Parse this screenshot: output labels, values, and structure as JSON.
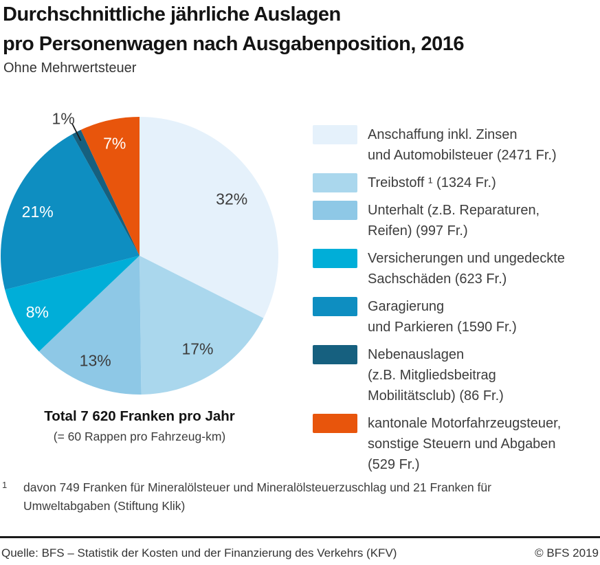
{
  "header": {
    "title_line1": "Durchschnittliche jährliche Auslagen",
    "title_line2": "pro Personenwagen nach Ausgabenposition, 2016",
    "subtitle": "Ohne Mehrwertsteuer"
  },
  "chart_data": {
    "type": "pie",
    "title": "Durchschnittliche jährliche Auslagen pro Personenwagen nach Ausgabenposition, 2016",
    "subtitle": "Ohne Mehrwertsteuer",
    "unit": "Franken (Fr.)",
    "total_value_fr": 7620,
    "total_label": "Total 7 620 Franken pro Jahr",
    "total_sublabel": "(= 60 Rappen pro Fahrzeug-km)",
    "legend_position": "right",
    "labels": "percent, inside slices (1% outside with leader line)",
    "start_angle": "12 o'clock, clockwise",
    "slices": [
      {
        "label": "Anschaffung inkl. Zinsen und Automobilsteuer",
        "value_fr": 2471,
        "pct_label": "32%",
        "color": "#e5f1fb",
        "label_color": "#3c3c3c",
        "label_outside": false
      },
      {
        "label": "Treibstoff ¹",
        "value_fr": 1324,
        "pct_label": "17%",
        "color": "#aad7ed",
        "label_color": "#3c3c3c",
        "label_outside": false
      },
      {
        "label": "Unterhalt (z.B. Reparaturen, Reifen)",
        "value_fr": 997,
        "pct_label": "13%",
        "color": "#8ec8e6",
        "label_color": "#3c3c3c",
        "label_outside": false
      },
      {
        "label": "Versicherungen und ungedeckte Sachschäden",
        "value_fr": 623,
        "pct_label": "8%",
        "color": "#00aed8",
        "label_color": "#ffffff",
        "label_outside": false
      },
      {
        "label": "Garagierung und Parkieren",
        "value_fr": 1590,
        "pct_label": "21%",
        "color": "#0e8ec1",
        "label_color": "#ffffff",
        "label_outside": false
      },
      {
        "label": "Nebenauslagen (z.B. Mitgliedsbeitrag Mobilitätsclub)",
        "value_fr": 86,
        "pct_label": "1%",
        "color": "#16607f",
        "label_color": "#3c3c3c",
        "label_outside": true
      },
      {
        "label": "kantonale Motorfahrzeugsteuer, sonstige Steuern und Abgaben",
        "value_fr": 529,
        "pct_label": "7%",
        "color": "#e8550c",
        "label_color": "#ffffff",
        "label_outside": false
      }
    ]
  },
  "legend": {
    "items": [
      {
        "lines": [
          "Anschaffung inkl. Zinsen",
          "und Automobilsteuer (2471 Fr.)"
        ]
      },
      {
        "lines": [
          "Treibstoff ¹ (1324 Fr.)"
        ]
      },
      {
        "lines": [
          "Unterhalt (z.B. Reparaturen,",
          "Reifen) (997 Fr.)"
        ]
      },
      {
        "lines": [
          "Versicherungen und ungedeckte",
          "Sachschäden (623 Fr.)"
        ]
      },
      {
        "lines": [
          "Garagierung",
          "und Parkieren (1590 Fr.)"
        ]
      },
      {
        "lines": [
          "Nebenauslagen",
          "(z.B. Mitgliedsbeitrag",
          "Mobilitätsclub) (86 Fr.)"
        ]
      },
      {
        "lines": [
          "kantonale Motorfahrzeugsteuer,",
          "sonstige Steuern und Abgaben",
          "(529 Fr.)"
        ]
      }
    ]
  },
  "footnote": {
    "marker": "1",
    "text": "davon 749 Franken für Mineralölsteuer und Mineralölsteuerzuschlag und 21 Franken für Umweltabgaben (Stiftung Klik)"
  },
  "footer": {
    "source": "Quelle: BFS – Statistik der Kosten und der Finanzierung des Verkehrs (KFV)",
    "copyright": "© BFS 2019"
  }
}
